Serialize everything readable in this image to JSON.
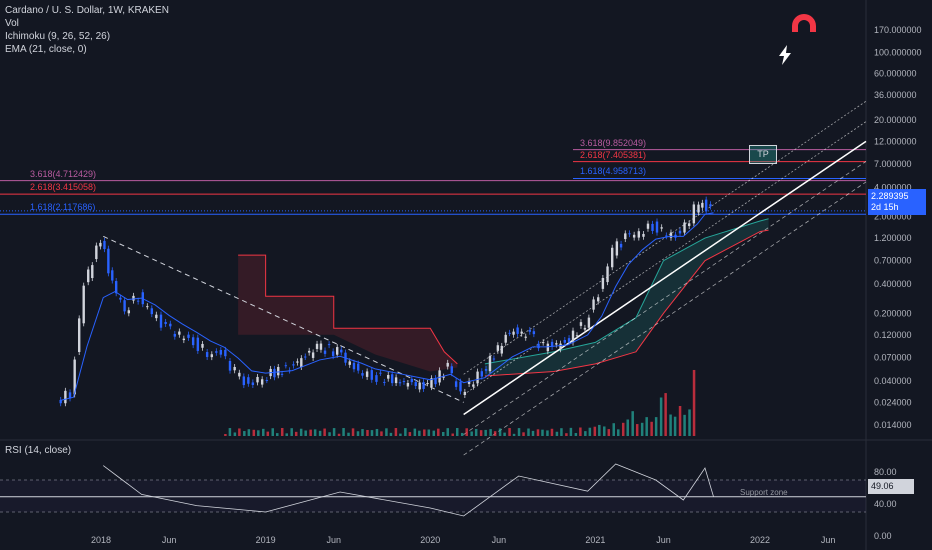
{
  "header": {
    "symbol_line": "Cardano / U. S. Dollar, 1W, KRAKEN",
    "vol_line": "Vol",
    "ichimoku_line": "Ichimoku (9, 26, 52, 26)",
    "ema_line": "EMA (21, close, 0)"
  },
  "rsi_panel": {
    "title": "RSI (14, close)",
    "current_value": "49.06",
    "support_label": "Support zone",
    "ticks": [
      "80.00",
      "40.00",
      "0.00"
    ]
  },
  "price_tag": {
    "value": "2.289395",
    "countdown": "2d 15h"
  },
  "tp_label": "TP",
  "fib_levels": [
    {
      "label": "3.618(9.852049)",
      "value": 9.852049,
      "color": "#b95ca0"
    },
    {
      "label": "2.618(7.405381)",
      "value": 7.405381,
      "color": "#f23645"
    },
    {
      "label": "1.618(4.958713)",
      "value": 4.958713,
      "color": "#2962ff"
    },
    {
      "label": "3.618(4.712429)",
      "value": 4.712429,
      "color": "#b95ca0"
    },
    {
      "label": "2.618(3.415058)",
      "value": 3.415058,
      "color": "#f23645"
    },
    {
      "label": "1.618(2.117686)",
      "value": 2.117686,
      "color": "#2962ff"
    }
  ],
  "colors": {
    "background": "#131722",
    "up": "#d1d4dc",
    "down": "#2962ff",
    "ema": "#2962ff",
    "channel": "#ffffff",
    "kumo_bear": "#f23645",
    "kumo_bull": "#26a69a"
  },
  "icons": [
    "magnet-icon",
    "lightning-icon"
  ],
  "chart_data": {
    "type": "line",
    "title": "Cardano / U. S. Dollar, 1W, KRAKEN",
    "y_scale": "log",
    "y_axis_ticks": [
      170.0,
      100.0,
      60.0,
      36.0,
      20.0,
      12.0,
      7.0,
      4.0,
      2.0,
      1.2,
      0.7,
      0.4,
      0.2,
      0.12,
      0.07,
      0.04,
      0.024,
      0.014
    ],
    "y_axis_tick_labels": [
      "170.000000",
      "100.000000",
      "60.000000",
      "36.000000",
      "20.000000",
      "12.000000",
      "7.000000",
      "4.000000",
      "2.000000",
      "1.200000",
      "0.700000",
      "0.400000",
      "0.200000",
      "0.120000",
      "0.070000",
      "0.040000",
      "0.024000",
      "0.014000"
    ],
    "x_axis_labels": [
      "2018",
      "Jun",
      "2019",
      "Jun",
      "2020",
      "Jun",
      "2021",
      "Jun",
      "2022",
      "Jun"
    ],
    "x_axis_dates": [
      "2018-01-01",
      "2018-06-01",
      "2019-01-01",
      "2019-06-01",
      "2020-01-01",
      "2020-06-01",
      "2021-01-01",
      "2021-06-01",
      "2022-01-01",
      "2022-06-01"
    ],
    "series": [
      {
        "name": "Close",
        "x": [
          "2017-10-01",
          "2017-11-01",
          "2017-12-01",
          "2018-01-06",
          "2018-02-01",
          "2018-03-01",
          "2018-04-01",
          "2018-05-01",
          "2018-06-01",
          "2018-07-01",
          "2018-08-01",
          "2018-09-01",
          "2018-10-01",
          "2018-11-01",
          "2018-12-01",
          "2019-01-01",
          "2019-03-01",
          "2019-05-01",
          "2019-06-15",
          "2019-08-01",
          "2019-09-01",
          "2019-11-01",
          "2020-01-01",
          "2020-02-15",
          "2020-03-15",
          "2020-05-01",
          "2020-07-01",
          "2020-08-15",
          "2020-09-15",
          "2020-11-01",
          "2020-12-15",
          "2021-01-15",
          "2021-02-15",
          "2021-03-15",
          "2021-04-15",
          "2021-05-15",
          "2021-06-15",
          "2021-07-15",
          "2021-08-15",
          "2021-09-01",
          "2021-09-20"
        ],
        "y": [
          0.025,
          0.03,
          0.4,
          1.2,
          0.4,
          0.22,
          0.3,
          0.2,
          0.14,
          0.12,
          0.1,
          0.08,
          0.075,
          0.05,
          0.035,
          0.045,
          0.055,
          0.09,
          0.08,
          0.05,
          0.045,
          0.04,
          0.035,
          0.055,
          0.03,
          0.05,
          0.13,
          0.12,
          0.09,
          0.1,
          0.16,
          0.32,
          0.9,
          1.2,
          1.4,
          1.6,
          1.35,
          1.25,
          2.4,
          2.8,
          2.289395
        ]
      }
    ],
    "rsi": {
      "x": [
        "2018-01-06",
        "2018-04-01",
        "2018-08-01",
        "2019-01-01",
        "2019-06-15",
        "2020-01-01",
        "2020-03-15",
        "2020-07-15",
        "2020-12-15",
        "2021-02-15",
        "2021-05-15",
        "2021-07-15",
        "2021-09-01",
        "2021-09-20"
      ],
      "y": [
        88,
        52,
        38,
        30,
        55,
        35,
        25,
        75,
        56,
        90,
        70,
        45,
        85,
        49.06
      ],
      "overbought": 70,
      "oversold": 30
    }
  }
}
